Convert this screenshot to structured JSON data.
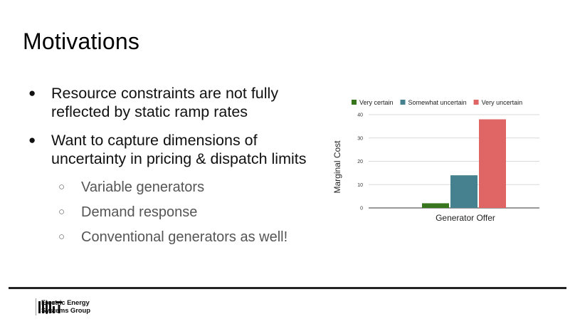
{
  "slide": {
    "title": "Motivations",
    "bullets": [
      {
        "text": "Resource constraints are not  fully reflected by static ramp rates"
      },
      {
        "text": "Want to capture dimensions of uncertainty in pricing & dispatch limits"
      }
    ],
    "sub_bullets": [
      {
        "text": "Variable generators"
      },
      {
        "text": "Demand response"
      },
      {
        "text": "Conventional generators as well!"
      }
    ],
    "bullet_glyph": "●",
    "sub_bullet_glyph": "○"
  },
  "footer": {
    "logo_line1": "Electric Energy",
    "logo_line2": "Systems Group"
  },
  "chart_data": {
    "type": "bar",
    "categories": [
      "Generator Offer"
    ],
    "series": [
      {
        "name": "Very certain",
        "values": [
          2
        ],
        "color": "#38761d"
      },
      {
        "name": "Somewhat uncertain",
        "values": [
          14
        ],
        "color": "#45818e"
      },
      {
        "name": "Very uncertain",
        "values": [
          38
        ],
        "color": "#e06666"
      }
    ],
    "xlabel": "Generator Offer",
    "ylabel": "Marginal Cost",
    "ylim": [
      0,
      40
    ],
    "yticks": [
      0,
      10,
      20,
      30,
      40
    ],
    "grid": true,
    "legend": "top"
  }
}
